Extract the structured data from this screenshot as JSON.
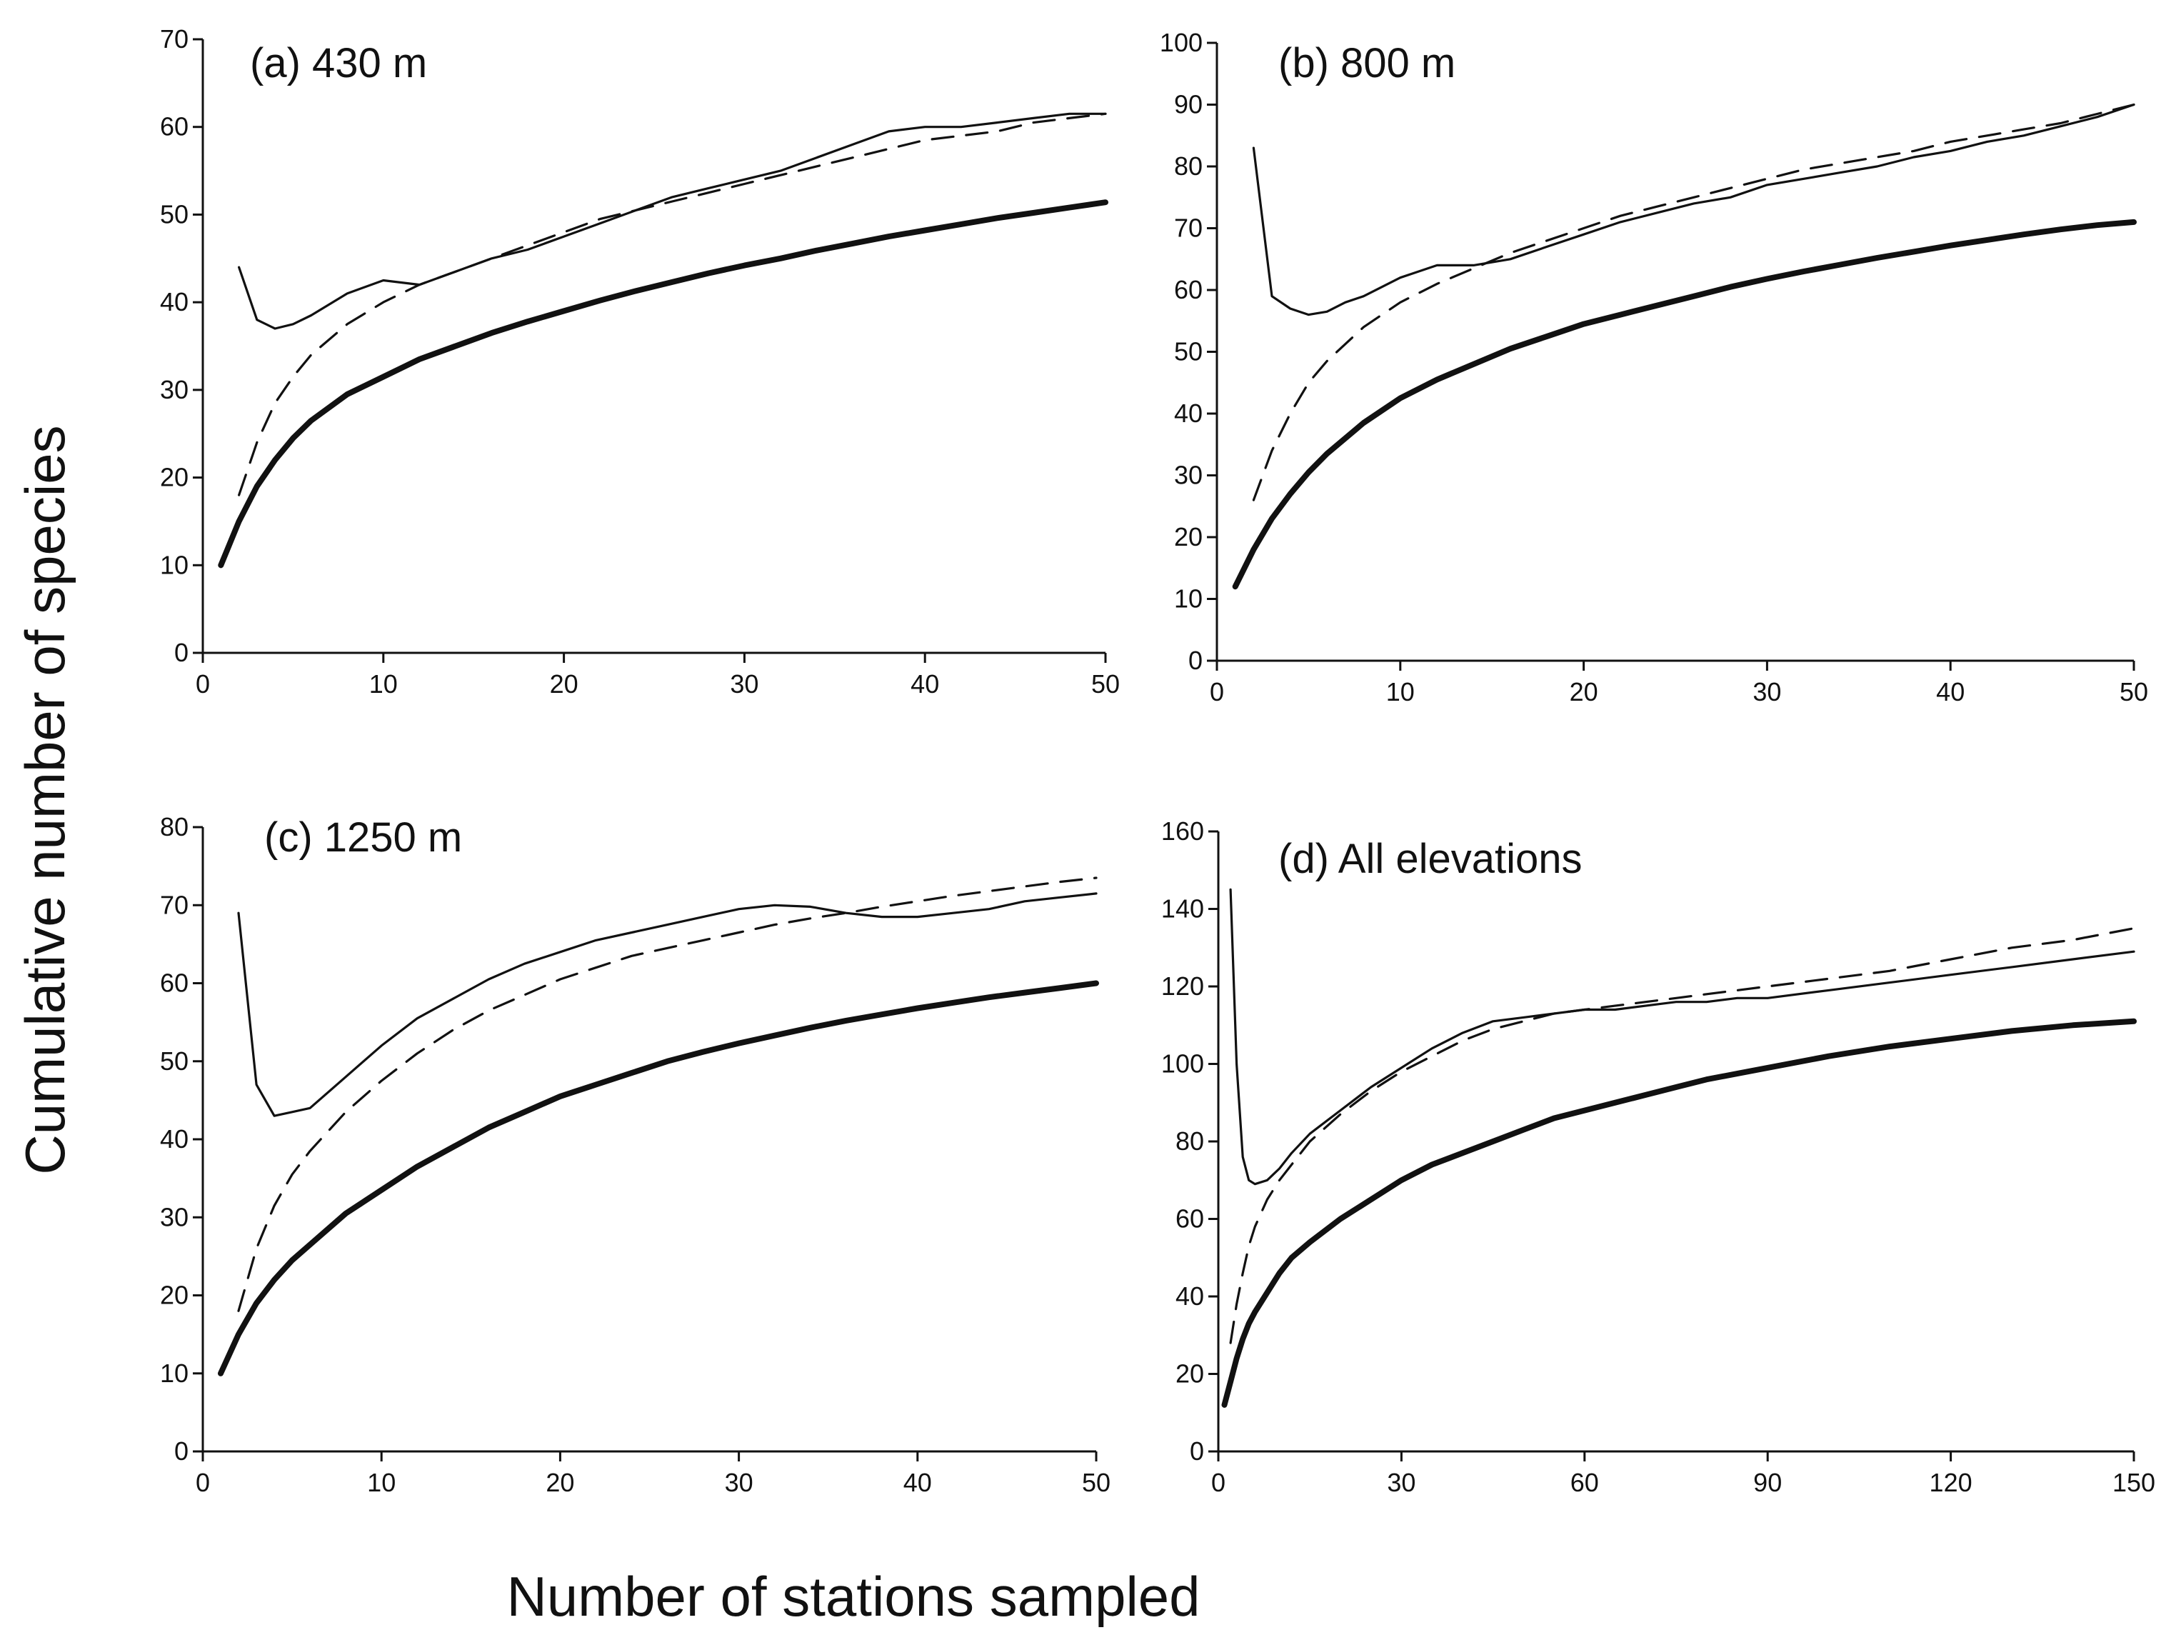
{
  "figure": {
    "ylabel": "Cumulative number of species",
    "xlabel": "Number of stations sampled"
  },
  "chart_data": [
    {
      "type": "line",
      "title": "(a) 430 m",
      "xlim": [
        0,
        50
      ],
      "ylim": [
        0,
        70
      ],
      "xticks": [
        0,
        10,
        20,
        30,
        40,
        50
      ],
      "yticks": [
        0,
        10,
        20,
        30,
        40,
        50,
        60,
        70
      ],
      "series": [
        {
          "style": "thin-solid",
          "x": [
            2,
            3,
            4,
            5,
            6,
            8,
            10,
            12,
            14,
            16,
            18,
            20,
            22,
            24,
            26,
            28,
            30,
            32,
            34,
            36,
            38,
            40,
            42,
            44,
            46,
            48,
            50
          ],
          "y": [
            44,
            38,
            37,
            37.5,
            38.5,
            41,
            42.5,
            42,
            43.5,
            45,
            46,
            47.5,
            49,
            50.5,
            52,
            53,
            54,
            55,
            56.5,
            58,
            59.5,
            60,
            60,
            60.5,
            61,
            61.5,
            61.5
          ]
        },
        {
          "style": "dashed",
          "x": [
            2,
            3,
            4,
            5,
            6,
            8,
            10,
            12,
            14,
            16,
            18,
            20,
            22,
            24,
            26,
            28,
            30,
            32,
            34,
            36,
            38,
            40,
            42,
            44,
            46,
            48,
            50
          ],
          "y": [
            18,
            24,
            28.5,
            31.5,
            34,
            37.5,
            40,
            42,
            43.5,
            45,
            46.5,
            48,
            49.5,
            50.5,
            51.5,
            52.5,
            53.5,
            54.5,
            55.5,
            56.5,
            57.5,
            58.5,
            59,
            59.5,
            60.5,
            61,
            61.5
          ]
        },
        {
          "style": "thick-solid",
          "x": [
            1,
            2,
            3,
            4,
            5,
            6,
            8,
            10,
            12,
            14,
            16,
            18,
            20,
            22,
            24,
            26,
            28,
            30,
            32,
            34,
            36,
            38,
            40,
            42,
            44,
            46,
            48,
            50
          ],
          "y": [
            10,
            15,
            19,
            22,
            24.5,
            26.5,
            29.5,
            31.5,
            33.5,
            35,
            36.5,
            37.8,
            39,
            40.2,
            41.3,
            42.3,
            43.3,
            44.2,
            45,
            45.9,
            46.7,
            47.5,
            48.2,
            48.9,
            49.6,
            50.2,
            50.8,
            51.4
          ]
        }
      ]
    },
    {
      "type": "line",
      "title": "(b) 800 m",
      "xlim": [
        0,
        50
      ],
      "ylim": [
        0,
        100
      ],
      "xticks": [
        0,
        10,
        20,
        30,
        40,
        50
      ],
      "yticks": [
        0,
        10,
        20,
        30,
        40,
        50,
        60,
        70,
        80,
        90,
        100
      ],
      "series": [
        {
          "style": "thin-solid",
          "x": [
            2,
            3,
            4,
            5,
            6,
            7,
            8,
            10,
            12,
            14,
            16,
            18,
            20,
            22,
            24,
            26,
            28,
            30,
            32,
            34,
            36,
            38,
            40,
            42,
            44,
            46,
            48,
            50
          ],
          "y": [
            83,
            59,
            57,
            56,
            56.5,
            58,
            59,
            62,
            64,
            64,
            65,
            67,
            69,
            71,
            72.5,
            74,
            75,
            77,
            78,
            79,
            80,
            81.5,
            82.5,
            84,
            85,
            86.5,
            88,
            90
          ]
        },
        {
          "style": "dashed",
          "x": [
            2,
            3,
            4,
            5,
            6,
            8,
            10,
            12,
            14,
            16,
            18,
            20,
            22,
            24,
            26,
            28,
            30,
            32,
            34,
            36,
            38,
            40,
            42,
            44,
            46,
            48,
            50
          ],
          "y": [
            26,
            34,
            40,
            45,
            48.5,
            54,
            58,
            61,
            63.5,
            66,
            68,
            70,
            72,
            73.5,
            75,
            76.5,
            78,
            79.5,
            80.5,
            81.5,
            82.5,
            84,
            85,
            86,
            87,
            88.5,
            90
          ]
        },
        {
          "style": "thick-solid",
          "x": [
            1,
            2,
            3,
            4,
            5,
            6,
            8,
            10,
            12,
            14,
            16,
            18,
            20,
            22,
            24,
            26,
            28,
            30,
            32,
            34,
            36,
            38,
            40,
            42,
            44,
            46,
            48,
            50
          ],
          "y": [
            12,
            18,
            23,
            27,
            30.5,
            33.5,
            38.5,
            42.5,
            45.5,
            48,
            50.5,
            52.5,
            54.5,
            56,
            57.5,
            59,
            60.5,
            61.8,
            63,
            64.1,
            65.2,
            66.2,
            67.2,
            68.1,
            69,
            69.8,
            70.5,
            71
          ]
        }
      ]
    },
    {
      "type": "line",
      "title": "(c) 1250 m",
      "xlim": [
        0,
        50
      ],
      "ylim": [
        0,
        80
      ],
      "xticks": [
        0,
        10,
        20,
        30,
        40,
        50
      ],
      "yticks": [
        0,
        10,
        20,
        30,
        40,
        50,
        60,
        70,
        80
      ],
      "series": [
        {
          "style": "thin-solid",
          "x": [
            2,
            3,
            4,
            5,
            6,
            8,
            10,
            12,
            14,
            16,
            18,
            20,
            22,
            24,
            26,
            28,
            30,
            32,
            34,
            36,
            38,
            40,
            42,
            44,
            46,
            48,
            50
          ],
          "y": [
            69,
            47,
            43,
            43.5,
            44,
            48,
            52,
            55.5,
            58,
            60.5,
            62.5,
            64,
            65.5,
            66.5,
            67.5,
            68.5,
            69.5,
            70,
            69.8,
            69,
            68.5,
            68.5,
            69,
            69.5,
            70.5,
            71,
            71.5
          ]
        },
        {
          "style": "dashed",
          "x": [
            2,
            3,
            4,
            5,
            6,
            8,
            10,
            12,
            14,
            16,
            18,
            20,
            22,
            24,
            26,
            28,
            30,
            32,
            34,
            36,
            38,
            40,
            42,
            44,
            46,
            48,
            50
          ],
          "y": [
            18,
            26,
            31.5,
            35.5,
            38.5,
            43.5,
            47.5,
            51,
            54,
            56.5,
            58.5,
            60.5,
            62,
            63.5,
            64.5,
            65.5,
            66.5,
            67.5,
            68.3,
            69,
            69.8,
            70.5,
            71.2,
            71.8,
            72.4,
            73,
            73.5
          ]
        },
        {
          "style": "thick-solid",
          "x": [
            1,
            2,
            3,
            4,
            5,
            6,
            8,
            10,
            12,
            14,
            16,
            18,
            20,
            22,
            24,
            26,
            28,
            30,
            32,
            34,
            36,
            38,
            40,
            42,
            44,
            46,
            48,
            50
          ],
          "y": [
            10,
            15,
            19,
            22,
            24.5,
            26.5,
            30.5,
            33.5,
            36.5,
            39,
            41.5,
            43.5,
            45.5,
            47,
            48.5,
            50,
            51.2,
            52.3,
            53.3,
            54.3,
            55.2,
            56,
            56.8,
            57.5,
            58.2,
            58.8,
            59.4,
            60
          ]
        }
      ]
    },
    {
      "type": "line",
      "title": "(d) All elevations",
      "xlim": [
        0,
        150
      ],
      "ylim": [
        0,
        160
      ],
      "xticks": [
        0,
        30,
        60,
        90,
        120,
        150
      ],
      "yticks": [
        0,
        20,
        40,
        60,
        80,
        100,
        120,
        140,
        160
      ],
      "series": [
        {
          "style": "thin-solid",
          "x": [
            2,
            3,
            4,
            5,
            6,
            8,
            10,
            12,
            15,
            20,
            25,
            30,
            35,
            40,
            45,
            50,
            55,
            60,
            65,
            70,
            75,
            80,
            85,
            90,
            100,
            110,
            120,
            130,
            140,
            150
          ],
          "y": [
            145,
            100,
            76,
            70,
            69,
            70,
            73,
            77,
            82,
            88,
            94,
            99,
            104,
            108,
            111,
            112,
            113,
            114,
            114,
            115,
            116,
            116,
            117,
            117,
            119,
            121,
            123,
            125,
            127,
            129
          ]
        },
        {
          "style": "dashed",
          "x": [
            2,
            3,
            4,
            5,
            6,
            8,
            10,
            12,
            15,
            20,
            25,
            30,
            35,
            40,
            45,
            50,
            55,
            60,
            65,
            70,
            75,
            80,
            85,
            90,
            100,
            110,
            120,
            130,
            140,
            150
          ],
          "y": [
            28,
            38,
            46,
            53,
            58,
            65,
            70,
            74,
            80,
            87,
            93,
            98,
            102,
            106,
            109,
            111,
            113,
            114,
            115,
            116,
            117,
            118,
            119,
            120,
            122,
            124,
            127,
            130,
            132,
            135
          ]
        },
        {
          "style": "thick-solid",
          "x": [
            1,
            2,
            3,
            4,
            5,
            6,
            8,
            10,
            12,
            15,
            20,
            25,
            30,
            35,
            40,
            45,
            50,
            55,
            60,
            65,
            70,
            75,
            80,
            85,
            90,
            100,
            110,
            120,
            130,
            140,
            150
          ],
          "y": [
            12,
            18,
            24,
            29,
            33,
            36,
            41,
            46,
            50,
            54,
            60,
            65,
            70,
            74,
            77,
            80,
            83,
            86,
            88,
            90,
            92,
            94,
            96,
            97.5,
            99,
            102,
            104.5,
            106.5,
            108.5,
            110,
            111
          ]
        }
      ]
    }
  ]
}
